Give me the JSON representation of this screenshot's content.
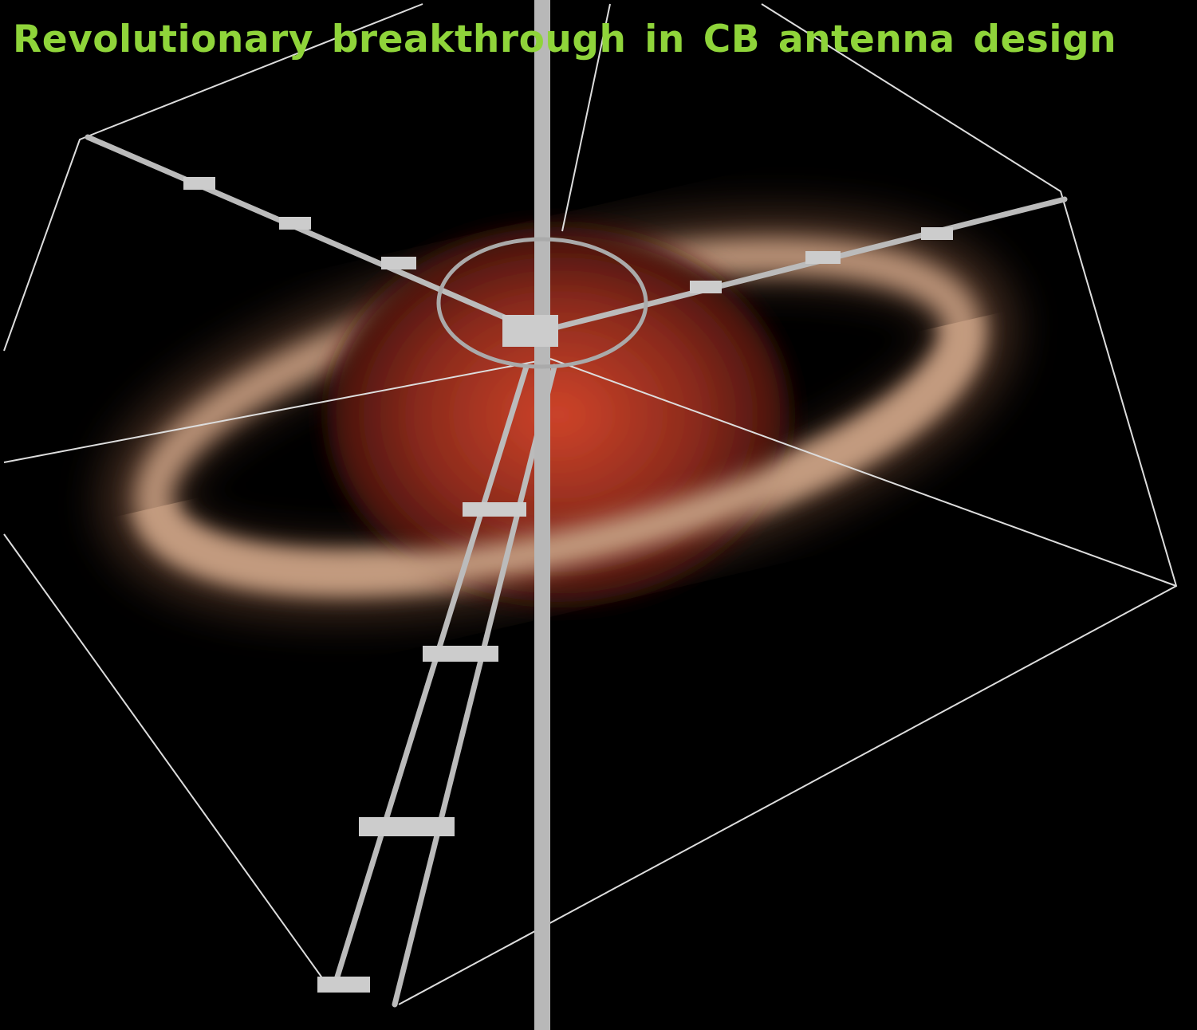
{
  "headline": "Revolutionary breakthrough in CB antenna design"
}
